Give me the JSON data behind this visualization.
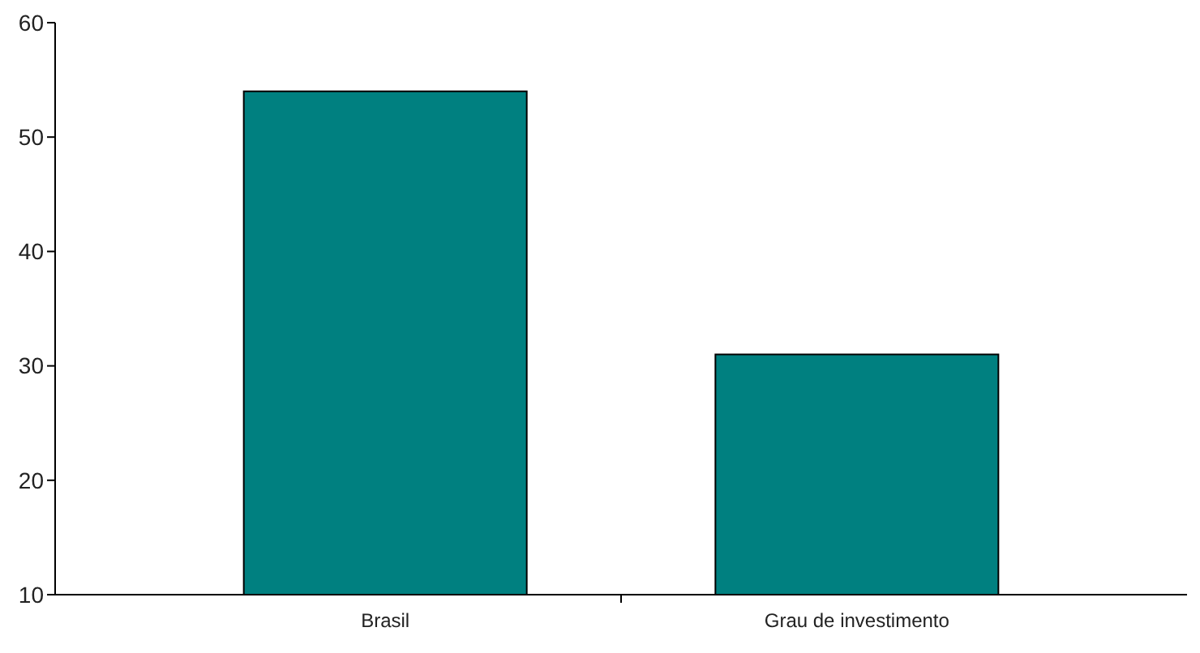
{
  "chart_data": {
    "type": "bar",
    "categories": [
      "Brasil",
      "Grau de investimento"
    ],
    "values": [
      54,
      31
    ],
    "color": "#008080",
    "ylim": [
      10,
      60
    ],
    "yticks": [
      10,
      20,
      30,
      40,
      50,
      60
    ],
    "grid": false
  }
}
